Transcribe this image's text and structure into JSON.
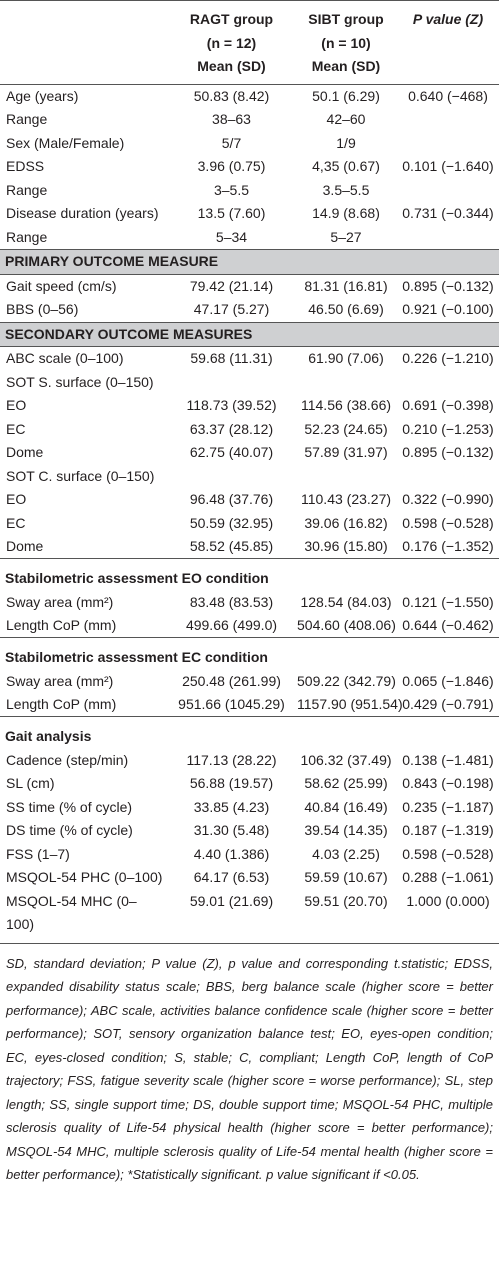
{
  "table": {
    "header": [
      [],
      [
        "RAGT group",
        "(n = 12)",
        "Mean (SD)"
      ],
      [
        "SIBT group",
        "(n = 10)",
        "Mean (SD)"
      ],
      [
        "P value (Z)"
      ]
    ],
    "sections": [
      {
        "rows": [
          [
            "Age (years)",
            "50.83 (8.42)",
            "50.1 (6.29)",
            "0.640 (−468)"
          ],
          [
            "Range",
            "38–63",
            "42–60",
            null
          ],
          [
            "Sex (Male/Female)",
            "5/7",
            "1/9",
            null
          ],
          [
            "EDSS",
            "3.96 (0.75)",
            "4,35 (0.67)",
            "0.101 (−1.640)"
          ],
          [
            "Range",
            "3–5.5",
            "3.5–5.5",
            null
          ],
          [
            "Disease duration (years)",
            "13.5 (7.60)",
            "14.9 (8.68)",
            "0.731 (−0.344)"
          ],
          [
            "Range",
            "5–34",
            "5–27",
            null
          ]
        ]
      },
      {
        "title": "PRIMARY OUTCOME MEASURE",
        "style": "shaded",
        "rows": [
          [
            "Gait speed (cm/s)",
            "79.42 (21.14)",
            "81.31 (16.81)",
            "0.895 (−0.132)"
          ],
          [
            "BBS (0–56)",
            "47.17 (5.27)",
            "46.50 (6.69)",
            "0.921 (−0.100)"
          ]
        ]
      },
      {
        "title": "SECONDARY OUTCOME MEASURES",
        "style": "shaded",
        "rows": [
          [
            "ABC scale (0–100)",
            "59.68 (11.31)",
            "61.90 (7.06)",
            "0.226 (−1.210)"
          ],
          [
            "SOT S. surface (0–150)",
            null,
            null,
            null
          ],
          [
            "EO",
            "118.73 (39.52)",
            "114.56 (38.66)",
            "0.691 (−0.398)"
          ],
          [
            "EC",
            "63.37 (28.12)",
            "52.23 (24.65)",
            "0.210 (−1.253)"
          ],
          [
            "Dome",
            "62.75 (40.07)",
            "57.89 (31.97)",
            "0.895 (−0.132)"
          ],
          [
            "SOT C. surface (0–150)",
            null,
            null,
            null
          ],
          [
            "EO",
            "96.48 (37.76)",
            "110.43 (23.27)",
            "0.322 (−0.990)"
          ],
          [
            "EC",
            "50.59 (32.95)",
            "39.06 (16.82)",
            "0.598 (−0.528)"
          ],
          [
            "Dome",
            "58.52 (45.85)",
            "30.96 (15.80)",
            "0.176 (−1.352)"
          ]
        ]
      },
      {
        "title": "Stabilometric assessment EO condition",
        "style": "ruled",
        "rows": [
          [
            "Sway area (mm²)",
            "83.48 (83.53)",
            "128.54 (84.03)",
            "0.121 (−1.550)"
          ],
          [
            "Length CoP (mm)",
            "499.66 (499.0)",
            "504.60 (408.06)",
            "0.644 (−0.462)"
          ]
        ]
      },
      {
        "title": "Stabilometric assessment EC condition",
        "style": "ruled",
        "rows": [
          [
            "Sway area (mm²)",
            "250.48 (261.99)",
            "509.22 (342.79)",
            "0.065 (−1.846)"
          ],
          [
            "Length CoP (mm)",
            "951.66 (1045.29)",
            "1157.90 (951.54)",
            "0.429 (−0.791)"
          ]
        ]
      },
      {
        "title": "Gait analysis",
        "style": "ruled",
        "rows": [
          [
            "Cadence (step/min)",
            "117.13 (28.22)",
            "106.32 (37.49)",
            "0.138 (−1.481)"
          ],
          [
            "SL (cm)",
            "56.88 (19.57)",
            "58.62 (25.99)",
            "0.843 (−0.198)"
          ],
          [
            "SS time (% of cycle)",
            "33.85 (4.23)",
            "40.84 (16.49)",
            "0.235 (−1.187)"
          ],
          [
            "DS time (% of cycle)",
            "31.30 (5.48)",
            "39.54 (14.35)",
            "0.187 (−1.319)"
          ],
          [
            "FSS (1–7)",
            "4.40 (1.386)",
            "4.03 (2.25)",
            "0.598 (−0.528)"
          ],
          [
            "MSQOL-54 PHC (0–100)",
            "64.17 (6.53)",
            "59.59 (10.67)",
            "0.288 (−1.061)"
          ],
          [
            "MSQOL-54 MHC (0–100)",
            "59.01 (21.69)",
            "59.51 (20.70)",
            "1.000 (0.000)"
          ]
        ]
      }
    ],
    "footnote": "SD, standard deviation; P value (Z), p value and corresponding t.statistic; EDSS, expanded disability status scale; BBS, berg balance scale (higher score = better performance); ABC scale, activities balance confidence scale (higher score = better performance); SOT, sensory organization balance test; EO, eyes-open condition; EC, eyes-closed condition; S, stable; C, compliant; Length CoP, length of CoP trajectory; FSS, fatigue severity scale (higher score = worse performance); SL, step length; SS, single support time; DS, double support time; MSQOL-54 PHC, multiple sclerosis quality of Life-54 physical health (higher score = better performance); MSQOL-54 MHC, multiple sclerosis quality of Life-54 mental health (higher score = better performance); *Statistically significant. p value significant if <0.05."
  }
}
